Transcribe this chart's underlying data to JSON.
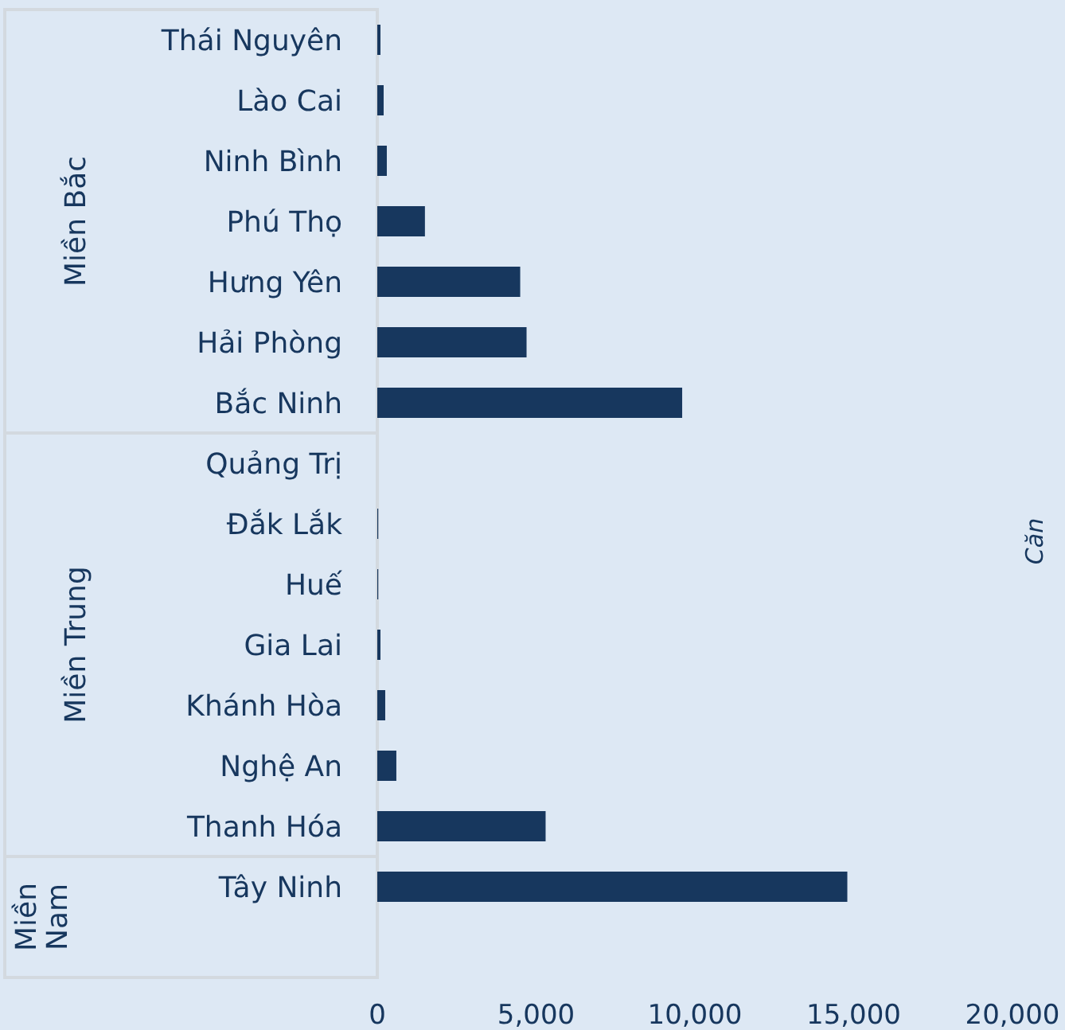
{
  "chart_data": {
    "type": "bar",
    "orientation": "horizontal",
    "y2label": "Căn",
    "categories": [
      "Thái Nguyên",
      "Lào Cai",
      "Ninh Bình",
      "Phú Thọ",
      "Hưng Yên",
      "Hải Phòng",
      "Bắc Ninh",
      "Quảng Trị",
      "Đắk Lắk",
      "Huế",
      "Gia Lai",
      "Khánh Hòa",
      "Nghệ An",
      "Thanh Hóa",
      "Tây Ninh",
      null
    ],
    "values": [
      100,
      200,
      300,
      1500,
      4500,
      4700,
      9600,
      0,
      30,
      30,
      100,
      250,
      600,
      5300,
      14800,
      null
    ],
    "color": "#17375e",
    "xlim": [
      0,
      20000
    ],
    "xticks": [
      0,
      {
        "value": 5000,
        "label": "5,000"
      },
      {
        "value": 10000,
        "label": "10,000"
      },
      {
        "value": 15000,
        "label": "15,000"
      },
      {
        "value": 20000,
        "label": "20,000"
      }
    ],
    "annotations": [
      "Miền Bắc",
      "Miền Trung",
      "Miền Nam"
    ],
    "grid": false
  }
}
